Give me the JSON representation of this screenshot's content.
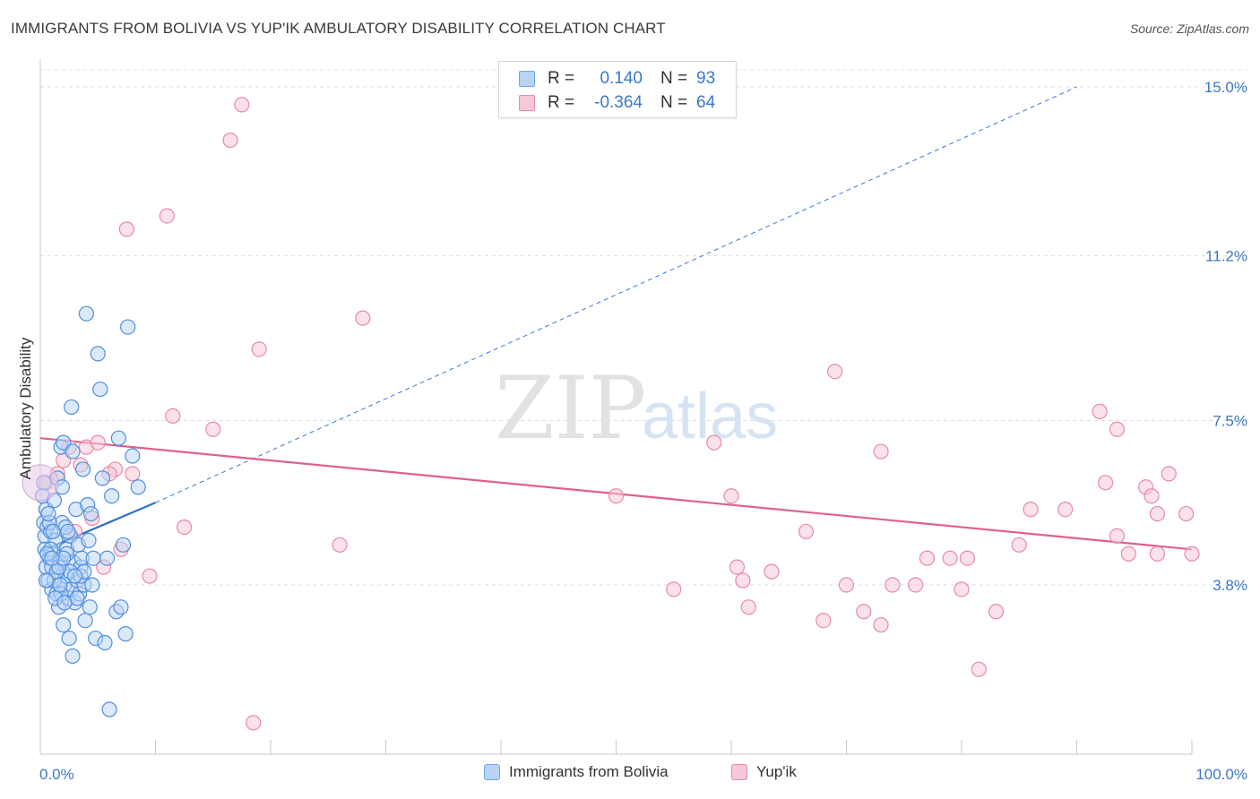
{
  "header": {
    "title": "IMMIGRANTS FROM BOLIVIA VS YUP'IK AMBULATORY DISABILITY CORRELATION CHART",
    "source": "Source: ZipAtlas.com"
  },
  "watermark": {
    "zip": "ZIP",
    "atlas": "atlas"
  },
  "stats": [
    {
      "r_label": "R =",
      "r_value": "0.140",
      "n_label": "N =",
      "n_value": "93",
      "color": "#6fa8e8",
      "fill": "#b9d3f5"
    },
    {
      "r_label": "R =",
      "r_value": "-0.364",
      "n_label": "N =",
      "n_value": "64",
      "color": "#e88aa8",
      "fill": "#f8c8d6"
    }
  ],
  "legend": [
    {
      "label": "Immigrants from Bolivia",
      "color": "#6fa8e8",
      "fill": "#b9d3f5"
    },
    {
      "label": "Yup'ik",
      "color": "#e88aa8",
      "fill": "#f8c8d6"
    }
  ],
  "chart_data": {
    "type": "scatter",
    "title": "IMMIGRANTS FROM BOLIVIA VS YUP'IK AMBULATORY DISABILITY CORRELATION CHART",
    "xlabel": "",
    "ylabel": "Ambulatory Disability",
    "xlim": [
      0,
      100
    ],
    "ylim": [
      0,
      15.5
    ],
    "x_tick_labels": [
      "0.0%",
      "100.0%"
    ],
    "y_ticks": [
      3.8,
      7.5,
      11.2,
      15.0
    ],
    "y_tick_labels": [
      "3.8%",
      "7.5%",
      "11.2%",
      "15.0%"
    ],
    "grid": "horizontal dashed",
    "legend_position": "bottom-center",
    "series": [
      {
        "name": "Immigrants from Bolivia",
        "color": "#3a78d4",
        "fill": "#b9d3f5",
        "trend": {
          "x": [
            0,
            10
          ],
          "y": [
            4.55,
            5.65
          ],
          "extended_to": [
            90,
            15.0
          ]
        },
        "points": [
          [
            0.2,
            5.8
          ],
          [
            0.3,
            5.2
          ],
          [
            0.4,
            4.9
          ],
          [
            0.5,
            5.5
          ],
          [
            0.4,
            4.6
          ],
          [
            0.6,
            5.1
          ],
          [
            0.5,
            4.2
          ],
          [
            0.7,
            3.9
          ],
          [
            0.8,
            4.4
          ],
          [
            0.9,
            5.0
          ],
          [
            1.0,
            3.7
          ],
          [
            1.1,
            4.5
          ],
          [
            1.2,
            5.7
          ],
          [
            1.3,
            4.8
          ],
          [
            1.4,
            3.6
          ],
          [
            1.5,
            4.1
          ],
          [
            1.6,
            3.3
          ],
          [
            1.7,
            4.3
          ],
          [
            1.8,
            6.9
          ],
          [
            1.9,
            5.2
          ],
          [
            2.0,
            2.9
          ],
          [
            2.1,
            3.8
          ],
          [
            2.2,
            4.0
          ],
          [
            2.3,
            4.6
          ],
          [
            2.4,
            3.5
          ],
          [
            2.5,
            2.6
          ],
          [
            2.6,
            4.9
          ],
          [
            2.7,
            3.7
          ],
          [
            2.8,
            2.2
          ],
          [
            2.9,
            4.3
          ],
          [
            3.0,
            3.4
          ],
          [
            3.1,
            5.5
          ],
          [
            3.2,
            3.9
          ],
          [
            3.3,
            4.7
          ],
          [
            3.4,
            3.6
          ],
          [
            3.5,
            4.2
          ],
          [
            3.6,
            4.4
          ],
          [
            3.7,
            6.4
          ],
          [
            3.8,
            3.8
          ],
          [
            3.9,
            3.0
          ],
          [
            4.0,
            9.9
          ],
          [
            4.1,
            5.6
          ],
          [
            4.2,
            4.8
          ],
          [
            4.3,
            3.3
          ],
          [
            4.4,
            5.4
          ],
          [
            4.6,
            4.4
          ],
          [
            4.8,
            2.6
          ],
          [
            5.0,
            9.0
          ],
          [
            5.2,
            8.2
          ],
          [
            5.4,
            6.2
          ],
          [
            5.6,
            2.5
          ],
          [
            5.8,
            4.4
          ],
          [
            6.0,
            1.0
          ],
          [
            6.2,
            5.8
          ],
          [
            6.6,
            3.2
          ],
          [
            6.8,
            7.1
          ],
          [
            7.0,
            3.3
          ],
          [
            7.2,
            4.7
          ],
          [
            7.4,
            2.7
          ],
          [
            7.6,
            9.6
          ],
          [
            8.0,
            6.7
          ],
          [
            8.5,
            6.0
          ],
          [
            1.0,
            4.2
          ],
          [
            1.2,
            3.9
          ],
          [
            2.0,
            7.0
          ],
          [
            2.2,
            5.1
          ],
          [
            1.5,
            6.2
          ],
          [
            0.8,
            5.2
          ],
          [
            1.8,
            3.6
          ],
          [
            2.6,
            4.1
          ],
          [
            3.2,
            3.5
          ],
          [
            0.9,
            4.6
          ],
          [
            1.4,
            4.1
          ],
          [
            1.7,
            3.8
          ],
          [
            2.3,
            4.5
          ],
          [
            0.6,
            4.5
          ],
          [
            1.1,
            5.0
          ],
          [
            2.8,
            6.8
          ],
          [
            3.5,
            4.0
          ],
          [
            1.6,
            4.2
          ],
          [
            0.7,
            5.4
          ],
          [
            2.0,
            4.4
          ],
          [
            2.4,
            5.0
          ],
          [
            1.3,
            3.5
          ],
          [
            3.8,
            4.1
          ],
          [
            0.5,
            3.9
          ],
          [
            1.9,
            6.0
          ],
          [
            2.7,
            7.8
          ],
          [
            3.0,
            4.0
          ],
          [
            4.5,
            3.8
          ],
          [
            0.3,
            6.1
          ],
          [
            1.0,
            4.4
          ],
          [
            2.1,
            3.4
          ]
        ]
      },
      {
        "name": "Yup'ik",
        "color": "#e0608c",
        "fill": "#f8c8d6",
        "trend": {
          "x": [
            0,
            100
          ],
          "y": [
            7.1,
            4.6
          ]
        },
        "points": [
          [
            1.5,
            6.3
          ],
          [
            2.0,
            6.6
          ],
          [
            3.5,
            6.5
          ],
          [
            4.0,
            6.9
          ],
          [
            4.5,
            5.3
          ],
          [
            5.0,
            7.0
          ],
          [
            5.5,
            4.2
          ],
          [
            6.5,
            6.4
          ],
          [
            7.0,
            4.6
          ],
          [
            8.0,
            6.3
          ],
          [
            7.5,
            11.8
          ],
          [
            9.5,
            4.0
          ],
          [
            11.0,
            12.1
          ],
          [
            11.5,
            7.6
          ],
          [
            12.5,
            5.1
          ],
          [
            15.0,
            7.3
          ],
          [
            16.5,
            13.8
          ],
          [
            17.5,
            14.6
          ],
          [
            18.5,
            0.7
          ],
          [
            19.0,
            9.1
          ],
          [
            26.0,
            4.7
          ],
          [
            28.0,
            9.8
          ],
          [
            50.0,
            5.8
          ],
          [
            55.0,
            3.7
          ],
          [
            58.5,
            7.0
          ],
          [
            60.0,
            5.8
          ],
          [
            60.5,
            4.2
          ],
          [
            61.0,
            3.9
          ],
          [
            61.5,
            3.3
          ],
          [
            63.5,
            4.1
          ],
          [
            66.5,
            5.0
          ],
          [
            68.0,
            3.0
          ],
          [
            69.0,
            8.6
          ],
          [
            70.0,
            3.8
          ],
          [
            71.5,
            3.2
          ],
          [
            73.0,
            6.8
          ],
          [
            73.0,
            2.9
          ],
          [
            74.0,
            3.8
          ],
          [
            76.0,
            3.8
          ],
          [
            77.0,
            4.4
          ],
          [
            79.0,
            4.4
          ],
          [
            80.0,
            3.7
          ],
          [
            80.5,
            4.4
          ],
          [
            81.5,
            1.9
          ],
          [
            83.0,
            3.2
          ],
          [
            85.0,
            4.7
          ],
          [
            86.0,
            5.5
          ],
          [
            89.0,
            5.5
          ],
          [
            92.0,
            7.7
          ],
          [
            92.5,
            6.1
          ],
          [
            93.5,
            7.3
          ],
          [
            93.5,
            4.9
          ],
          [
            94.5,
            4.5
          ],
          [
            96.0,
            6.0
          ],
          [
            96.5,
            5.8
          ],
          [
            97.0,
            4.5
          ],
          [
            97.0,
            5.4
          ],
          [
            98.0,
            6.3
          ],
          [
            99.5,
            5.4
          ],
          [
            100.0,
            4.5
          ],
          [
            0.5,
            6.1
          ],
          [
            2.5,
            6.9
          ],
          [
            3.0,
            5.0
          ],
          [
            6.0,
            6.3
          ]
        ]
      }
    ]
  }
}
